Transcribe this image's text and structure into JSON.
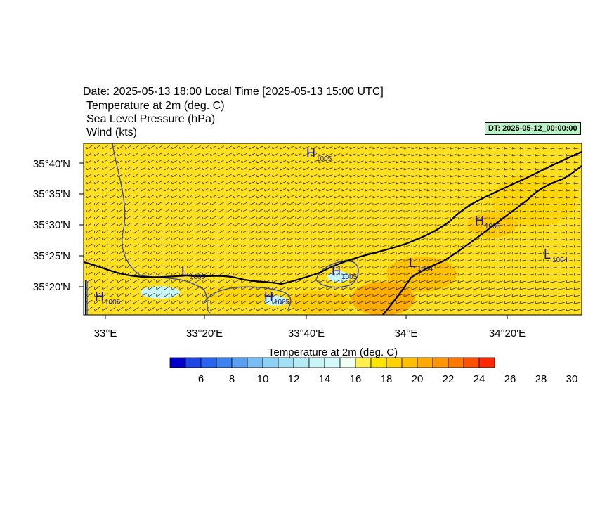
{
  "header": {
    "title": "Date: 2025-05-13  18:00 Local Time [2025-05-13  15:00 UTC]",
    "line1": "Temperature at 2m   (deg. C)",
    "line2": "Sea Level Pressure   (hPa)",
    "line3": "Wind   (kts)",
    "dt": "DT: 2025-05-12_00:00:00"
  },
  "map": {
    "lat_ticks": [
      "35°40'N",
      "35°35'N",
      "35°30'N",
      "35°25'N",
      "35°20'N"
    ],
    "lon_ticks": [
      "33°E",
      "33°20'E",
      "33°40'E",
      "34°E",
      "34°20'E"
    ],
    "pressure_centers": [
      {
        "type": "H",
        "value": "1005"
      },
      {
        "type": "H",
        "value": "1005"
      },
      {
        "type": "L",
        "value": "1004"
      },
      {
        "type": "L",
        "value": "1004"
      },
      {
        "type": "L",
        "value": "1005"
      },
      {
        "type": "H",
        "value": "1005"
      },
      {
        "type": "H",
        "value": "1005"
      },
      {
        "type": "H",
        "value": "1005"
      }
    ]
  },
  "colorbar": {
    "title": "Temperature at 2m  (deg. C)",
    "labels": [
      "6",
      "8",
      "10",
      "12",
      "14",
      "16",
      "18",
      "20",
      "22",
      "24",
      "26",
      "28",
      "30"
    ],
    "colors": [
      "#0000c8",
      "#1e46e6",
      "#2864f0",
      "#3c82f0",
      "#5aa0f0",
      "#78bef5",
      "#8cd2f5",
      "#a0e1f5",
      "#b4ebf5",
      "#c8f5f5",
      "#d2fafa",
      "#f0fff0",
      "#fff050",
      "#ffe600",
      "#ffd200",
      "#ffbe00",
      "#ffaa00",
      "#ff9600",
      "#ff7800",
      "#ff5000",
      "#ff2800"
    ]
  }
}
